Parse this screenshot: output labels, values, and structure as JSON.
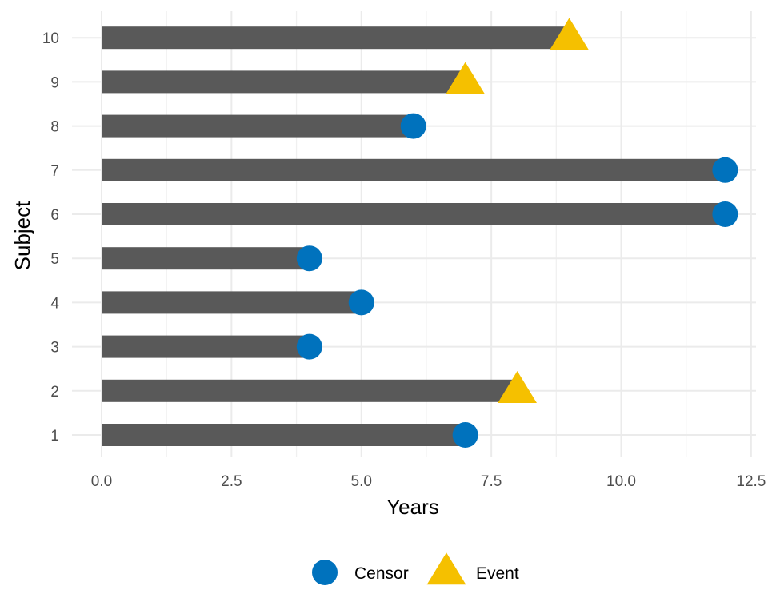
{
  "chart_data": {
    "type": "bar",
    "orientation": "horizontal",
    "xlabel": "Years",
    "ylabel": "Subject",
    "xlim": [
      0,
      12.5
    ],
    "x_ticks": [
      "0.0",
      "2.5",
      "5.0",
      "7.5",
      "10.0",
      "12.5"
    ],
    "x_tick_values": [
      0,
      2.5,
      5,
      7.5,
      10,
      12.5
    ],
    "categories": [
      "1",
      "2",
      "3",
      "4",
      "5",
      "6",
      "7",
      "8",
      "9",
      "10"
    ],
    "subjects": [
      {
        "subject": "1",
        "years": 7,
        "status": "Censor"
      },
      {
        "subject": "2",
        "years": 8,
        "status": "Event"
      },
      {
        "subject": "3",
        "years": 4,
        "status": "Censor"
      },
      {
        "subject": "4",
        "years": 5,
        "status": "Censor"
      },
      {
        "subject": "5",
        "years": 4,
        "status": "Censor"
      },
      {
        "subject": "6",
        "years": 12,
        "status": "Censor"
      },
      {
        "subject": "7",
        "years": 12,
        "status": "Censor"
      },
      {
        "subject": "8",
        "years": 6,
        "status": "Censor"
      },
      {
        "subject": "9",
        "years": 7,
        "status": "Event"
      },
      {
        "subject": "10",
        "years": 9,
        "status": "Event"
      }
    ],
    "legend": {
      "position": "bottom",
      "entries": [
        {
          "label": "Censor",
          "shape": "circle",
          "color": "#0072BD"
        },
        {
          "label": "Event",
          "shape": "triangle",
          "color": "#F5C000"
        }
      ]
    },
    "bar_color": "#595959",
    "grid": true
  }
}
